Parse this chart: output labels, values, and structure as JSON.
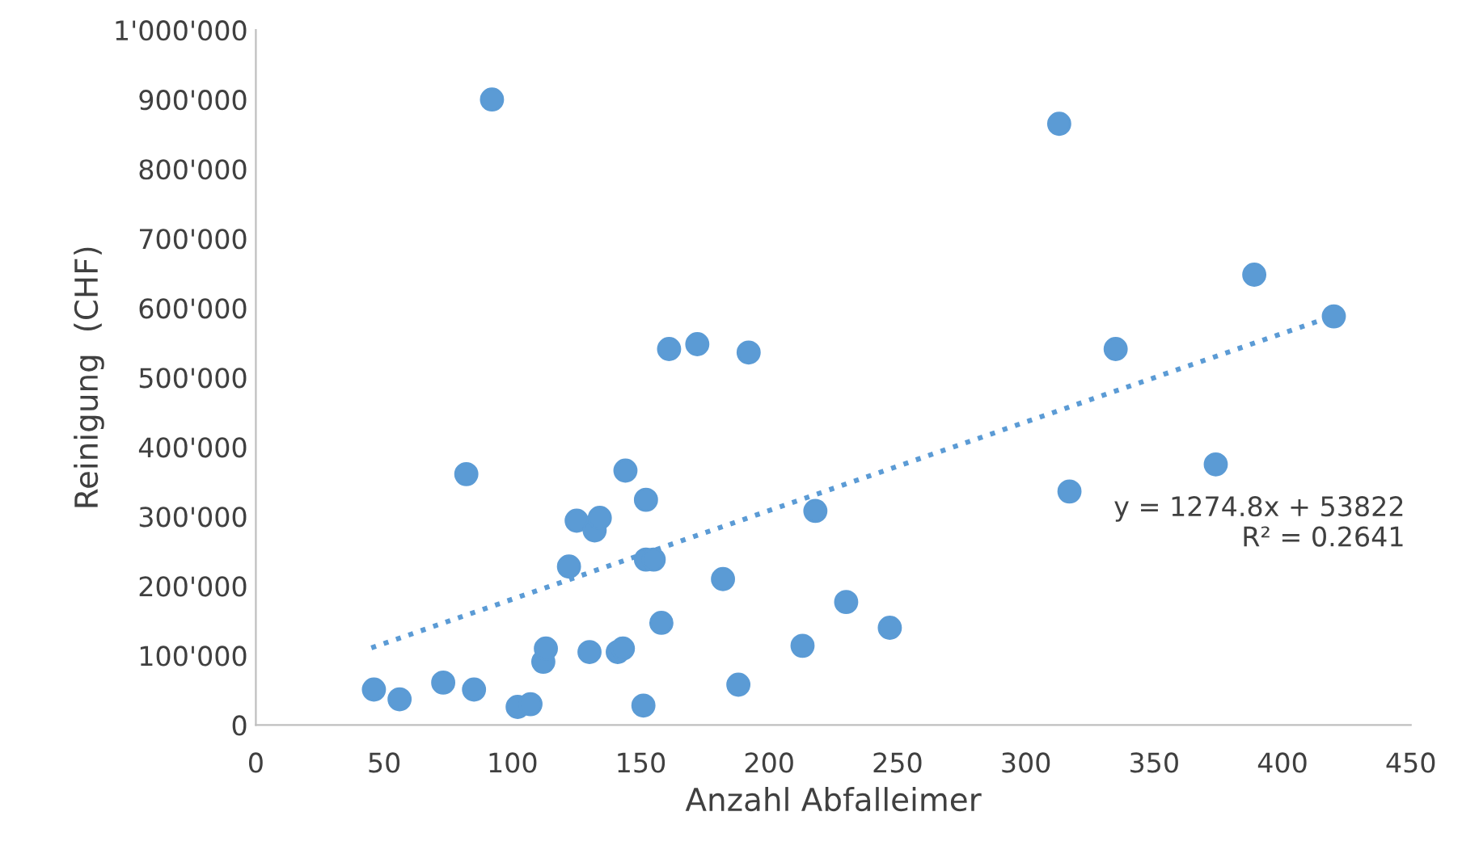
{
  "chart_data": {
    "type": "scatter",
    "xlabel": "Anzahl Abfalleimer",
    "ylabel": "Reinigung  (CHF)",
    "xlim": [
      0,
      450
    ],
    "xticks": [
      0,
      50,
      100,
      150,
      200,
      250,
      300,
      350,
      400,
      450
    ],
    "ylim": [
      0,
      1000000
    ],
    "yticks": [
      {
        "value": 0,
        "label": "0"
      },
      {
        "value": 100000,
        "label": "100'000"
      },
      {
        "value": 200000,
        "label": "200'000"
      },
      {
        "value": 300000,
        "label": "300'000"
      },
      {
        "value": 400000,
        "label": "400'000"
      },
      {
        "value": 500000,
        "label": "500'000"
      },
      {
        "value": 600000,
        "label": "600'000"
      },
      {
        "value": 700000,
        "label": "700'000"
      },
      {
        "value": 800000,
        "label": "800'000"
      },
      {
        "value": 900000,
        "label": "900'000"
      },
      {
        "value": 1000000,
        "label": "1'000'000"
      }
    ],
    "grid": false,
    "legend": false,
    "series": [
      {
        "marker": "circle",
        "color": "#5b9bd5",
        "x": [
          46,
          56,
          73,
          85,
          92,
          82,
          102,
          107,
          112,
          113,
          122,
          125,
          132,
          134,
          130,
          141,
          143,
          144,
          151,
          152,
          152,
          155,
          158,
          161,
          172,
          182,
          188,
          192,
          213,
          218,
          230,
          247,
          313,
          317,
          335,
          374,
          389,
          420
        ],
        "values": [
          51000,
          37000,
          61000,
          51000,
          900000,
          361000,
          26000,
          30000,
          91000,
          110000,
          228000,
          294000,
          280000,
          298000,
          105000,
          105000,
          110000,
          366000,
          28000,
          324000,
          238000,
          238000,
          147000,
          541000,
          548000,
          210000,
          58000,
          536000,
          114000,
          308000,
          177000,
          140000,
          865000,
          336000,
          541000,
          375000,
          648000,
          588000
        ]
      },
      {
        "type": "line",
        "color": "#5b9bd5",
        "line_style": "dotted",
        "x": [
          45,
          420
        ],
        "values": [
          111000,
          589000
        ]
      }
    ],
    "annotations": [
      "y = 1274.8x + 53822\nR² = 0.2641"
    ]
  }
}
